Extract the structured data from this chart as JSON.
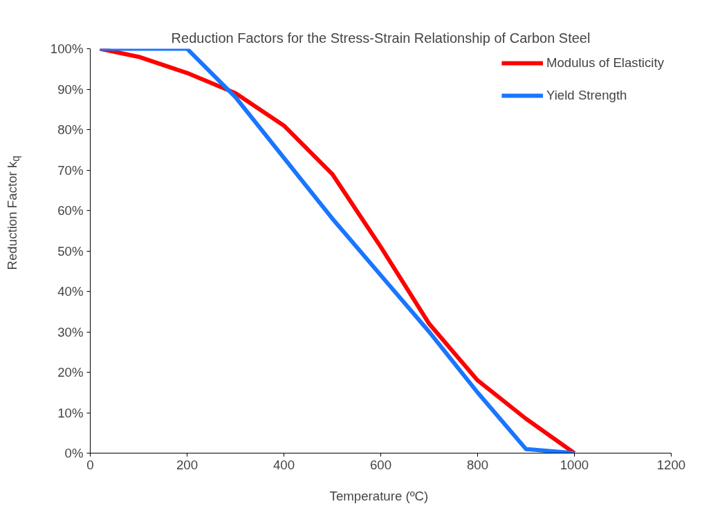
{
  "chart_data": {
    "type": "line",
    "title": "Reduction Factors for the Stress-Strain Relationship of Carbon Steel",
    "xlabel": "Temperature  (ºC)",
    "ylabel": "Reduction Factor k$_{q}$",
    "xlim": [
      0,
      1200
    ],
    "xticks": [
      0,
      200,
      400,
      600,
      800,
      1000,
      1200
    ],
    "ylim": [
      0,
      1
    ],
    "yticks": [
      {
        "value": 0,
        "label": "0%"
      },
      {
        "value": 0.1,
        "label": "10%"
      },
      {
        "value": 0.2,
        "label": "20%"
      },
      {
        "value": 0.3,
        "label": "30%"
      },
      {
        "value": 0.4,
        "label": "40%"
      },
      {
        "value": 0.5,
        "label": "50%"
      },
      {
        "value": 0.6,
        "label": "60%"
      },
      {
        "value": 0.7,
        "label": "70%"
      },
      {
        "value": 0.8,
        "label": "80%"
      },
      {
        "value": 0.9,
        "label": "90%"
      },
      {
        "value": 1,
        "label": "100%"
      }
    ],
    "grid": false,
    "legend": "top right",
    "line_style": "solid",
    "series": [
      {
        "name": "Modulus of Elasticity",
        "color": "#ff0000",
        "x": [
          20,
          100,
          200,
          300,
          400,
          500,
          600,
          700,
          800,
          900,
          1000
        ],
        "values": [
          1.0,
          0.98,
          0.94,
          0.89,
          0.81,
          0.69,
          0.51,
          0.32,
          0.18,
          0.085,
          0.0
        ]
      },
      {
        "name": "Yield Strength",
        "color": "#1a75ff",
        "x": [
          20,
          200,
          300,
          400,
          500,
          600,
          700,
          800,
          900,
          1000
        ],
        "values": [
          1.0,
          1.0,
          0.88,
          0.73,
          0.58,
          0.44,
          0.3,
          0.15,
          0.01,
          0.0
        ]
      }
    ]
  }
}
